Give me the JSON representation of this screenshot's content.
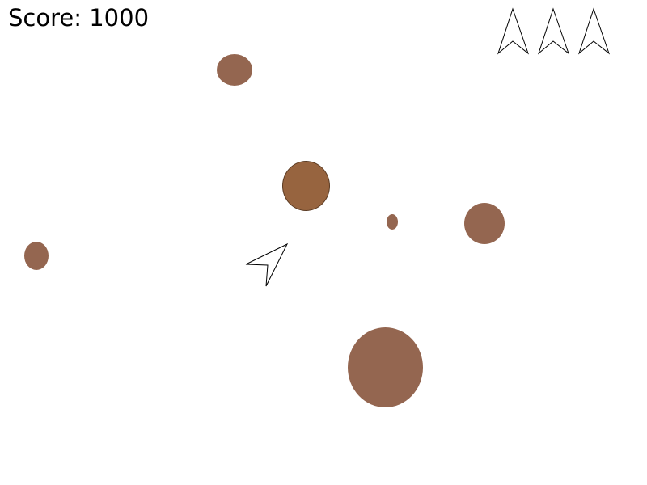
{
  "hud": {
    "score_text": "Score: 1000",
    "lives": 3
  },
  "colors": {
    "asteroid": "#946650",
    "asteroid_dark": "#97643F",
    "outline": "#000000",
    "background": "#ffffff"
  },
  "entities": {
    "player_ship": "spaceship",
    "asteroid_count": 6
  }
}
